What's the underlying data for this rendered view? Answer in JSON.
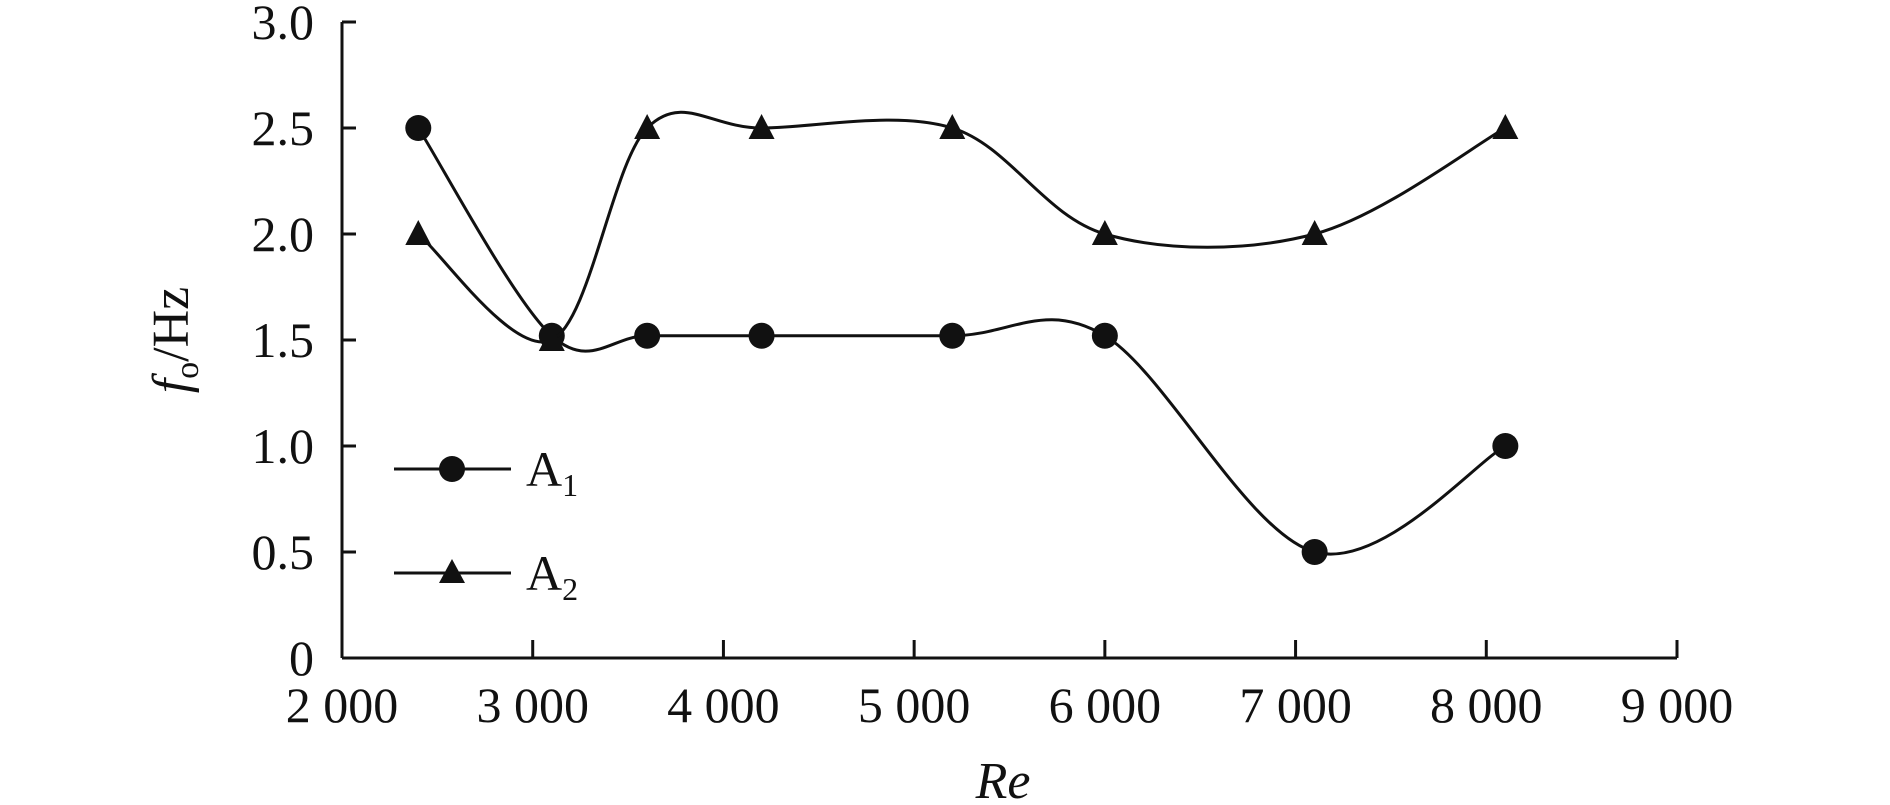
{
  "chart_data": {
    "type": "line",
    "title": "",
    "xlabel": "Re",
    "ylabel_main": "f",
    "ylabel_sub": "o",
    "ylabel_unit": "/Hz",
    "xlim": [
      2000,
      9000
    ],
    "ylim": [
      0,
      3.0
    ],
    "xticks": [
      2000,
      3000,
      4000,
      5000,
      6000,
      7000,
      8000,
      9000
    ],
    "xtick_labels": [
      "2 000",
      "3 000",
      "4 000",
      "5 000",
      "6 000",
      "7 000",
      "8 000",
      "9 000"
    ],
    "yticks": [
      0,
      0.5,
      1.0,
      1.5,
      2.0,
      2.5,
      3.0
    ],
    "ytick_labels": [
      "0",
      "0.5",
      "1.0",
      "1.5",
      "2.0",
      "2.5",
      "3.0"
    ],
    "grid": false,
    "legend_position": "middle-left",
    "x": [
      2400,
      3100,
      3600,
      4200,
      5200,
      6000,
      7100,
      8100
    ],
    "series": [
      {
        "name": "A1",
        "label_main": "A",
        "label_sub": "1",
        "marker": "circle",
        "values": [
          2.5,
          1.52,
          1.52,
          1.52,
          1.52,
          1.52,
          0.5,
          1.0
        ]
      },
      {
        "name": "A2",
        "label_main": "A",
        "label_sub": "2",
        "marker": "triangle",
        "values": [
          2.0,
          1.5,
          2.5,
          2.5,
          2.5,
          2.0,
          2.0,
          2.5
        ]
      }
    ],
    "color": "#111111"
  }
}
